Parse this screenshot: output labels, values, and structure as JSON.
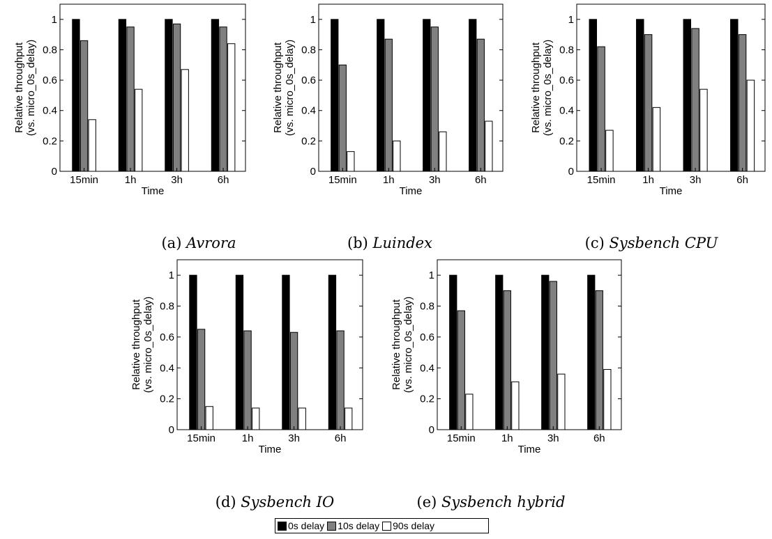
{
  "legend": [
    {
      "label": "0s delay",
      "color": "#000000"
    },
    {
      "label": "10s delay",
      "color": "#808080"
    },
    {
      "label": "90s delay",
      "color": "#ffffff"
    }
  ],
  "chart_data": [
    {
      "type": "bar",
      "caption_label": "(a)",
      "caption_name": "Avrora",
      "categories": [
        "15min",
        "1h",
        "3h",
        "6h"
      ],
      "xlabel": "Time",
      "ylabel_line1": "Relative throughput",
      "ylabel_line2": "(vs. micro_0s_delay)",
      "ylim": [
        0,
        1.1
      ],
      "yticks": [
        "0",
        "0.2",
        "0.4",
        "0.6",
        "0.8",
        "1"
      ],
      "series": [
        {
          "name": "0s delay",
          "values": [
            1.0,
            1.0,
            1.0,
            1.0
          ]
        },
        {
          "name": "10s delay",
          "values": [
            0.86,
            0.95,
            0.97,
            0.95
          ]
        },
        {
          "name": "90s delay",
          "values": [
            0.34,
            0.54,
            0.67,
            0.84
          ]
        }
      ]
    },
    {
      "type": "bar",
      "caption_label": "(b)",
      "caption_name": "Luindex",
      "categories": [
        "15min",
        "1h",
        "3h",
        "6h"
      ],
      "xlabel": "Time",
      "ylabel_line1": "Relative throughput",
      "ylabel_line2": "(vs. micro_0s_delay)",
      "ylim": [
        0,
        1.1
      ],
      "yticks": [
        "0",
        "0.2",
        "0.4",
        "0.6",
        "0.8",
        "1"
      ],
      "series": [
        {
          "name": "0s delay",
          "values": [
            1.0,
            1.0,
            1.0,
            1.0
          ]
        },
        {
          "name": "10s delay",
          "values": [
            0.7,
            0.87,
            0.95,
            0.87
          ]
        },
        {
          "name": "90s delay",
          "values": [
            0.13,
            0.2,
            0.26,
            0.33
          ]
        }
      ]
    },
    {
      "type": "bar",
      "caption_label": "(c)",
      "caption_name": "Sysbench CPU",
      "categories": [
        "15min",
        "1h",
        "3h",
        "6h"
      ],
      "xlabel": "Time",
      "ylabel_line1": "Relative throughput",
      "ylabel_line2": "(vs. micro_0s_delay)",
      "ylim": [
        0,
        1.1
      ],
      "yticks": [
        "0",
        "0.2",
        "0.4",
        "0.6",
        "0.8",
        "1"
      ],
      "series": [
        {
          "name": "0s delay",
          "values": [
            1.0,
            1.0,
            1.0,
            1.0
          ]
        },
        {
          "name": "10s delay",
          "values": [
            0.82,
            0.9,
            0.94,
            0.9
          ]
        },
        {
          "name": "90s delay",
          "values": [
            0.27,
            0.42,
            0.54,
            0.6
          ]
        }
      ]
    },
    {
      "type": "bar",
      "caption_label": "(d)",
      "caption_name": "Sysbench IO",
      "categories": [
        "15min",
        "1h",
        "3h",
        "6h"
      ],
      "xlabel": "Time",
      "ylabel_line1": "Relative throughput",
      "ylabel_line2": "(vs. micro_0s_delay)",
      "ylim": [
        0,
        1.1
      ],
      "yticks": [
        "0",
        "0.2",
        "0.4",
        "0.6",
        "0.8",
        "1"
      ],
      "series": [
        {
          "name": "0s delay",
          "values": [
            1.0,
            1.0,
            1.0,
            1.0
          ]
        },
        {
          "name": "10s delay",
          "values": [
            0.65,
            0.64,
            0.63,
            0.64
          ]
        },
        {
          "name": "90s delay",
          "values": [
            0.15,
            0.14,
            0.14,
            0.14
          ]
        }
      ]
    },
    {
      "type": "bar",
      "caption_label": "(e)",
      "caption_name": "Sysbench hybrid",
      "categories": [
        "15min",
        "1h",
        "3h",
        "6h"
      ],
      "xlabel": "Time",
      "ylabel_line1": "Relative throughput",
      "ylabel_line2": "(vs. micro_0s_delay)",
      "ylim": [
        0,
        1.1
      ],
      "yticks": [
        "0",
        "0.2",
        "0.4",
        "0.6",
        "0.8",
        "1"
      ],
      "series": [
        {
          "name": "0s delay",
          "values": [
            1.0,
            1.0,
            1.0,
            1.0
          ]
        },
        {
          "name": "10s delay",
          "values": [
            0.77,
            0.9,
            0.96,
            0.9
          ]
        },
        {
          "name": "90s delay",
          "values": [
            0.23,
            0.31,
            0.36,
            0.39
          ]
        }
      ]
    }
  ]
}
